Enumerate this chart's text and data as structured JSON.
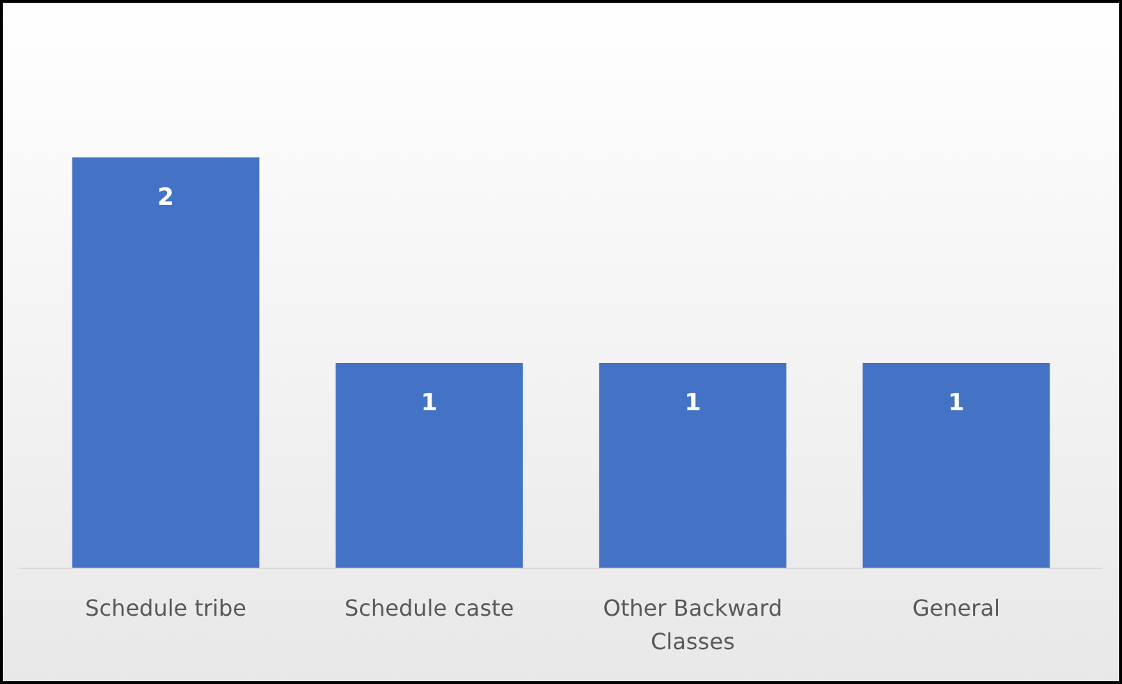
{
  "chart_data": {
    "type": "bar",
    "categories": [
      "Schedule tribe",
      "Schedule caste",
      "Other Backward Classes",
      "General"
    ],
    "values": [
      2,
      1,
      1,
      1
    ],
    "data_labels": true,
    "color": "#4472c4"
  }
}
